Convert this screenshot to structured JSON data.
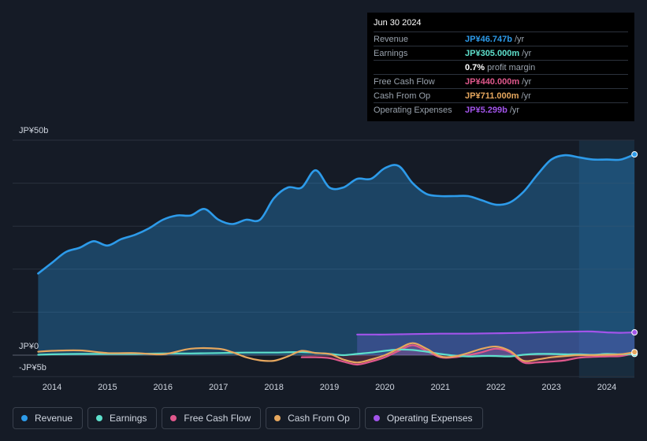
{
  "tooltip": {
    "date": "Jun 30 2024",
    "rows": [
      {
        "label": "Revenue",
        "value": "JP¥46.747b",
        "unit": "/yr",
        "color": "#2d9bea"
      },
      {
        "label": "Earnings",
        "value": "JP¥305.000m",
        "unit": "/yr",
        "color": "#5ee0cc"
      },
      {
        "label": "",
        "value": "0.7%",
        "unit": "profit margin",
        "color": "#ffffff"
      },
      {
        "label": "Free Cash Flow",
        "value": "JP¥440.000m",
        "unit": "/yr",
        "color": "#e0588c"
      },
      {
        "label": "Cash From Op",
        "value": "JP¥711.000m",
        "unit": "/yr",
        "color": "#e6a75e"
      },
      {
        "label": "Operating Expenses",
        "value": "JP¥5.299b",
        "unit": "/yr",
        "color": "#a254ea"
      }
    ]
  },
  "chart_data": {
    "type": "line",
    "title": "",
    "ylabel": "",
    "xlabel": "",
    "y_axis_labels": [
      {
        "label": "JP¥50b",
        "value": 50
      },
      {
        "label": "JP¥0",
        "value": 0
      },
      {
        "label": "-JP¥5b",
        "value": -5
      }
    ],
    "ylim": [
      -5,
      50
    ],
    "xlim": [
      2013.6,
      2024.55
    ],
    "x_ticks": [
      2014,
      2015,
      2016,
      2017,
      2018,
      2019,
      2020,
      2021,
      2022,
      2023,
      2024
    ],
    "highlight_start": 2023.5,
    "series": [
      {
        "name": "Revenue",
        "color": "#2d9bea",
        "fill": true,
        "x": [
          2013.75,
          2014.0,
          2014.25,
          2014.5,
          2014.75,
          2015.0,
          2015.25,
          2015.5,
          2015.75,
          2016.0,
          2016.25,
          2016.5,
          2016.75,
          2017.0,
          2017.25,
          2017.5,
          2017.75,
          2018.0,
          2018.25,
          2018.5,
          2018.75,
          2019.0,
          2019.25,
          2019.5,
          2019.75,
          2020.0,
          2020.25,
          2020.5,
          2020.75,
          2021.0,
          2021.25,
          2021.5,
          2021.75,
          2022.0,
          2022.25,
          2022.5,
          2022.75,
          2023.0,
          2023.25,
          2023.5,
          2023.75,
          2024.0,
          2024.25,
          2024.5
        ],
        "values": [
          19,
          21.5,
          24,
          25,
          26.5,
          25.5,
          27,
          28,
          29.5,
          31.5,
          32.5,
          32.5,
          34,
          31.5,
          30.5,
          31.5,
          31.5,
          36.5,
          39,
          39,
          43,
          39,
          39,
          41,
          41,
          43.5,
          44,
          40,
          37.5,
          37,
          37,
          37,
          36,
          35,
          35.5,
          38,
          42,
          45.5,
          46.5,
          46,
          45.5,
          45.5,
          45.5,
          46.7
        ]
      },
      {
        "name": "Earnings",
        "color": "#5ee0cc",
        "fill": false,
        "x": [
          2013.75,
          2014.0,
          2014.5,
          2015.0,
          2015.5,
          2016.0,
          2016.5,
          2017.0,
          2017.5,
          2018.0,
          2018.5,
          2019.0,
          2019.25,
          2019.5,
          2019.75,
          2020.0,
          2020.25,
          2020.5,
          2020.75,
          2021.0,
          2021.25,
          2021.5,
          2021.75,
          2022.0,
          2022.25,
          2022.5,
          2022.75,
          2023.0,
          2023.25,
          2023.5,
          2023.75,
          2024.0,
          2024.25,
          2024.5
        ],
        "values": [
          0.1,
          0.2,
          0.3,
          0.3,
          0.3,
          0.4,
          0.4,
          0.5,
          0.6,
          0.6,
          0.7,
          0.3,
          0.0,
          0.3,
          0.6,
          1.0,
          1.3,
          1.2,
          0.8,
          0.3,
          -0.1,
          -0.3,
          -0.2,
          -0.2,
          -0.3,
          0.1,
          0.3,
          0.3,
          0.2,
          0.2,
          0.1,
          0.3,
          0.2,
          0.3
        ]
      },
      {
        "name": "Free Cash Flow",
        "color": "#e0588c",
        "fill": true,
        "x": [
          2018.5,
          2018.75,
          2019.0,
          2019.25,
          2019.5,
          2019.75,
          2020.0,
          2020.25,
          2020.5,
          2020.75,
          2021.0,
          2021.25,
          2021.5,
          2021.75,
          2022.0,
          2022.25,
          2022.5,
          2022.75,
          2023.0,
          2023.25,
          2023.5,
          2023.75,
          2024.0,
          2024.25,
          2024.5
        ],
        "values": [
          -0.5,
          -0.5,
          -0.7,
          -1.5,
          -2.2,
          -1.5,
          -0.5,
          1.0,
          2.3,
          1.0,
          -0.5,
          -0.5,
          0.0,
          0.7,
          1.5,
          0.7,
          -1.7,
          -1.7,
          -1.5,
          -1.2,
          -0.6,
          -0.4,
          -0.3,
          -0.2,
          0.44
        ]
      },
      {
        "name": "Cash From Op",
        "color": "#e6a75e",
        "fill": false,
        "x": [
          2013.75,
          2014.0,
          2014.5,
          2015.0,
          2015.5,
          2016.0,
          2016.5,
          2017.0,
          2017.25,
          2017.5,
          2017.75,
          2018.0,
          2018.25,
          2018.5,
          2018.75,
          2019.0,
          2019.25,
          2019.5,
          2019.75,
          2020.0,
          2020.25,
          2020.5,
          2020.75,
          2021.0,
          2021.25,
          2021.5,
          2021.75,
          2022.0,
          2022.25,
          2022.5,
          2022.75,
          2023.0,
          2023.25,
          2023.5,
          2023.75,
          2024.0,
          2024.25,
          2024.5
        ],
        "values": [
          0.8,
          1.0,
          1.1,
          0.5,
          0.5,
          0.2,
          1.5,
          1.5,
          0.7,
          -0.5,
          -1.2,
          -1.3,
          -0.3,
          1.0,
          0.5,
          0.3,
          -1.0,
          -1.7,
          -1.0,
          0.0,
          1.5,
          2.8,
          1.5,
          -0.3,
          -0.3,
          0.5,
          1.5,
          2.0,
          1.0,
          -1.3,
          -1.0,
          -0.5,
          -0.2,
          0.0,
          0.0,
          0.1,
          0.2,
          0.71
        ]
      },
      {
        "name": "Operating Expenses",
        "color": "#a254ea",
        "fill": true,
        "x": [
          2019.5,
          2019.75,
          2020.0,
          2020.5,
          2021.0,
          2021.5,
          2022.0,
          2022.5,
          2023.0,
          2023.5,
          2023.75,
          2024.0,
          2024.25,
          2024.5
        ],
        "values": [
          4.8,
          4.8,
          4.8,
          4.9,
          5.0,
          5.0,
          5.1,
          5.2,
          5.4,
          5.5,
          5.5,
          5.3,
          5.2,
          5.3
        ]
      }
    ]
  }
}
